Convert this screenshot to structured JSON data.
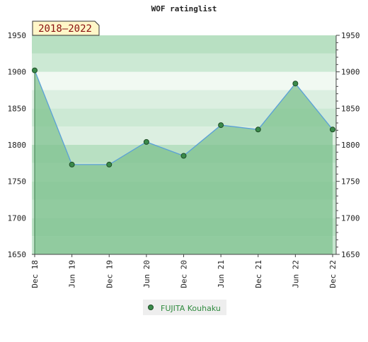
{
  "title": "WOF ratinglist",
  "period_badge": "2018–2022",
  "legend": {
    "label": "FUJITA Kouhaku"
  },
  "colors": {
    "line": "#5aa0d8",
    "marker_fill": "#3a8a4a",
    "marker_stroke": "#1f4d27",
    "fill_area": "#7fc18f",
    "legend_text": "#2f8a3e",
    "badge_bg": "#fff6c8",
    "badge_text": "#8a1010"
  },
  "chart_data": {
    "type": "area",
    "title": "WOF ratinglist",
    "categories": [
      "Dec 18",
      "Jun 19",
      "Dec 19",
      "Jun 20",
      "Dec 20",
      "Jun 21",
      "Dec 21",
      "Jun 22",
      "Dec 22"
    ],
    "series": [
      {
        "name": "FUJITA Kouhaku",
        "values": [
          1902,
          1773,
          1773,
          1804,
          1785,
          1827,
          1821,
          1884,
          1821
        ]
      }
    ],
    "ylim": [
      1650,
      1950
    ],
    "yticks": [
      1650,
      1700,
      1750,
      1800,
      1850,
      1900,
      1950
    ],
    "xlabel": "",
    "ylabel": "",
    "grid": false,
    "legend_position": "bottom-center",
    "y_axis_sides": "left-and-right"
  }
}
